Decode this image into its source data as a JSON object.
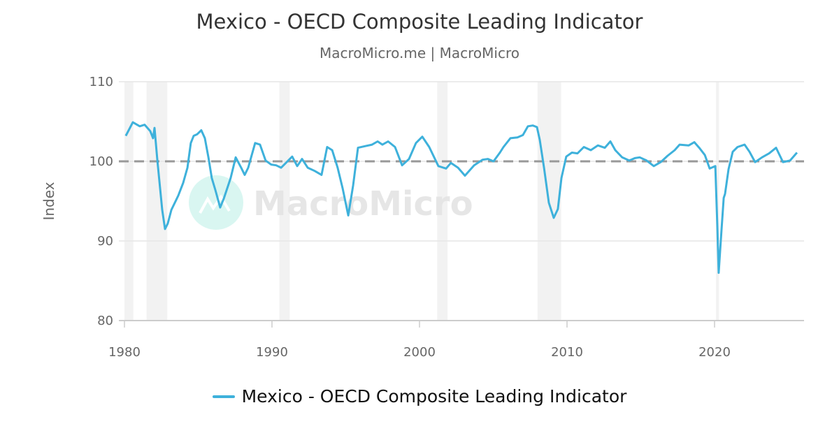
{
  "chart_data": {
    "type": "line",
    "title": "Mexico - OECD Composite Leading Indicator",
    "subtitle": "MacroMicro.me | MacroMicro",
    "ylabel": "Index",
    "xlabel": "",
    "xlim": [
      1980,
      2026
    ],
    "ylim": [
      80,
      110
    ],
    "x_ticks": [
      "1980",
      "1990",
      "2000",
      "2010",
      "2020"
    ],
    "y_ticks": [
      "80",
      "90",
      "100",
      "110"
    ],
    "grid": "horizontal",
    "legend_position": "bottom",
    "reference_line": {
      "value": 100,
      "style": "dashed",
      "color": "#999999"
    },
    "shaded_periods": [
      [
        1980.0,
        1980.6
      ],
      [
        1981.5,
        1982.9
      ],
      [
        1990.5,
        1991.2
      ],
      [
        2001.2,
        2001.9
      ],
      [
        2008.0,
        2009.6
      ],
      [
        2020.1,
        2020.3
      ]
    ],
    "watermark": "MacroMicro",
    "series": [
      {
        "name": "Mexico - OECD Composite Leading Indicator",
        "color": "#3eb1db",
        "x": [
          1980.09,
          1980.57,
          1981.04,
          1981.37,
          1981.75,
          1981.94,
          1982.04,
          1982.23,
          1982.56,
          1982.75,
          1982.94,
          1983.18,
          1983.65,
          1983.98,
          1984.27,
          1984.5,
          1984.69,
          1984.93,
          1985.21,
          1985.45,
          1985.69,
          1985.92,
          1986.16,
          1986.49,
          1986.73,
          1987.2,
          1987.54,
          1987.91,
          1988.15,
          1988.39,
          1988.86,
          1989.19,
          1989.57,
          1989.95,
          1990.28,
          1990.62,
          1991.0,
          1991.37,
          1991.71,
          1992.04,
          1992.42,
          1992.89,
          1993.36,
          1993.74,
          1994.08,
          1994.45,
          1994.79,
          1995.17,
          1995.5,
          1995.83,
          1996.3,
          1996.78,
          1997.16,
          1997.49,
          1997.87,
          1998.34,
          1998.82,
          1999.29,
          1999.76,
          2000.19,
          2000.66,
          2001.28,
          2001.8,
          2002.13,
          2002.61,
          2003.08,
          2003.7,
          2004.27,
          2004.64,
          2005.02,
          2005.45,
          2005.69,
          2006.16,
          2006.64,
          2007.01,
          2007.35,
          2007.68,
          2007.96,
          2008.15,
          2008.44,
          2008.77,
          2009.1,
          2009.38,
          2009.62,
          2009.95,
          2010.33,
          2010.71,
          2011.14,
          2011.61,
          2012.09,
          2012.56,
          2012.94,
          2013.27,
          2013.74,
          2014.22,
          2014.6,
          2014.93,
          2015.4,
          2015.88,
          2016.35,
          2016.82,
          2017.3,
          2017.63,
          2018.25,
          2018.63,
          2018.96,
          2019.34,
          2019.67,
          2020.05,
          2020.19,
          2020.28,
          2020.47,
          2020.62,
          2020.71,
          2020.95,
          2021.23,
          2021.56,
          2022.04,
          2022.37,
          2022.75,
          2023.22,
          2023.7,
          2024.17,
          2024.64,
          2025.12,
          2025.59
        ],
        "y": [
          103.2,
          104.9,
          104.4,
          104.6,
          103.8,
          102.9,
          104.2,
          100.1,
          93.9,
          91.5,
          92.2,
          93.9,
          95.7,
          97.3,
          99.2,
          102.3,
          103.2,
          103.4,
          103.9,
          102.9,
          100.5,
          97.9,
          96.4,
          94.2,
          95.3,
          97.9,
          100.5,
          99.2,
          98.3,
          99.2,
          102.3,
          102.1,
          100.1,
          99.6,
          99.5,
          99.2,
          99.9,
          100.6,
          99.4,
          100.3,
          99.2,
          98.8,
          98.3,
          101.8,
          101.4,
          99.2,
          96.6,
          93.2,
          97.0,
          101.7,
          101.9,
          102.1,
          102.5,
          102.1,
          102.5,
          101.8,
          99.5,
          100.3,
          102.3,
          103.1,
          101.8,
          99.4,
          99.1,
          99.8,
          99.2,
          98.2,
          99.5,
          100.2,
          100.3,
          100.0,
          101.1,
          101.8,
          102.9,
          103.0,
          103.3,
          104.4,
          104.5,
          104.3,
          102.7,
          99.2,
          94.8,
          92.9,
          94.0,
          97.9,
          100.6,
          101.1,
          101.0,
          101.8,
          101.4,
          102.0,
          101.7,
          102.5,
          101.4,
          100.5,
          100.1,
          100.4,
          100.5,
          100.1,
          99.4,
          99.9,
          100.7,
          101.4,
          102.1,
          102.0,
          102.4,
          101.7,
          100.8,
          99.1,
          99.4,
          91.8,
          86.0,
          91.3,
          95.4,
          95.9,
          99.0,
          101.2,
          101.8,
          102.1,
          101.2,
          99.9,
          100.5,
          101.0,
          101.7,
          99.9,
          100.1,
          101.1
        ]
      }
    ]
  }
}
